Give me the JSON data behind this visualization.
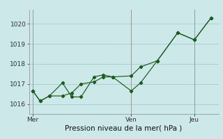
{
  "title": "",
  "xlabel": "Pression niveau de la mer( hPa )",
  "background_color": "#cce8e8",
  "grid_color": "#aad0d0",
  "line_color": "#1a5c1a",
  "marker_color": "#1a5c1a",
  "ylim": [
    1015.5,
    1020.7
  ],
  "yticks": [
    1016,
    1017,
    1018,
    1019,
    1020
  ],
  "day_labels": [
    "Mer",
    "Ven",
    "Jeu"
  ],
  "day_positions": [
    0.0,
    0.53,
    0.87
  ],
  "vline_positions": [
    0.0,
    0.53,
    0.87
  ],
  "series1_x": [
    0.0,
    0.04,
    0.09,
    0.16,
    0.21,
    0.26,
    0.33,
    0.38,
    0.43,
    0.53,
    0.58,
    0.67,
    0.78,
    0.87,
    0.96
  ],
  "series1_y": [
    1016.65,
    1016.15,
    1016.4,
    1017.05,
    1016.35,
    1016.35,
    1017.35,
    1017.45,
    1017.35,
    1016.65,
    1017.05,
    1018.15,
    1019.55,
    1019.2,
    1020.3
  ],
  "series2_x": [
    0.0,
    0.04,
    0.09,
    0.16,
    0.21,
    0.26,
    0.33,
    0.38,
    0.43,
    0.53,
    0.58,
    0.67,
    0.78,
    0.87,
    0.96
  ],
  "series2_y": [
    1016.65,
    1016.15,
    1016.4,
    1016.4,
    1016.55,
    1017.0,
    1017.1,
    1017.35,
    1017.35,
    1017.4,
    1017.85,
    1018.15,
    1019.55,
    1019.2,
    1020.3
  ],
  "ytick_fontsize": 6.5,
  "xtick_fontsize": 6.5,
  "xlabel_fontsize": 7.5,
  "linewidth": 0.85,
  "markersize": 2.2
}
